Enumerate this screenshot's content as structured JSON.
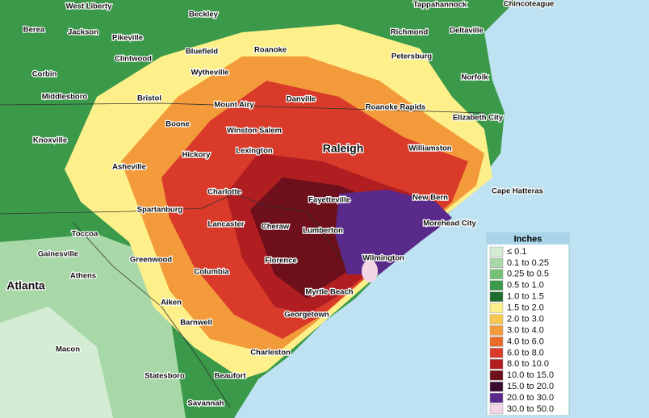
{
  "map": {
    "cities": [
      "West Liberty",
      "Beckley",
      "Tappahannock",
      "Chincoteague",
      "Berea",
      "Jackson",
      "Pikeville",
      "Richmond",
      "Deltaville",
      "Bluefield",
      "Roanoke",
      "Clintwood",
      "Petersburg",
      "Corbin",
      "Wytheville",
      "Norfolk",
      "Middlesboro",
      "Bristol",
      "Mount Airy",
      "Danville",
      "Roanoke Rapids",
      "Elizabeth City",
      "Boone",
      "Winston Salem",
      "Knoxville",
      "Lexington",
      "Raleigh",
      "Williamston",
      "Hickory",
      "Asheville",
      "Charlotte",
      "Fayetteville",
      "New Bern",
      "Cape Hatteras",
      "Spartanburg",
      "Lancaster",
      "Cheraw",
      "Lumberton",
      "Morehead City",
      "Toccoa",
      "Gainesville",
      "Greenwood",
      "Florence",
      "Wilmington",
      "Athens",
      "Columbia",
      "Atlanta",
      "Myrtle Beach",
      "Aiken",
      "Georgetown",
      "Barnwell",
      "Macon",
      "Charleston",
      "Statesboro",
      "Beaufort",
      "Savannah"
    ]
  },
  "legend": {
    "title": "Inches",
    "entries": [
      {
        "label": "≤ 0.1",
        "color": "#d4ecd4"
      },
      {
        "label": "0.1 to 0.25",
        "color": "#a8d8a8"
      },
      {
        "label": "0.25 to 0.5",
        "color": "#74c274"
      },
      {
        "label": "0.5 to 1.0",
        "color": "#3a9a4a"
      },
      {
        "label": "1.0 to 1.5",
        "color": "#1e6b2e"
      },
      {
        "label": "1.5 to 2.0",
        "color": "#fdf08a"
      },
      {
        "label": "2.0 to 3.0",
        "color": "#f9c74f"
      },
      {
        "label": "3.0 to 4.0",
        "color": "#f39a3a"
      },
      {
        "label": "4.0 to 6.0",
        "color": "#ea6a2a"
      },
      {
        "label": "6.0 to 8.0",
        "color": "#d93a2a"
      },
      {
        "label": "8.0 to 10.0",
        "color": "#b01e22"
      },
      {
        "label": "10.0 to 15.0",
        "color": "#6e0f1c"
      },
      {
        "label": "15.0 to 20.0",
        "color": "#3a0a30"
      },
      {
        "label": "20.0 to 30.0",
        "color": "#5a2a8a"
      },
      {
        "label": "30.0 to 50.0",
        "color": "#f2d6e6"
      }
    ]
  }
}
